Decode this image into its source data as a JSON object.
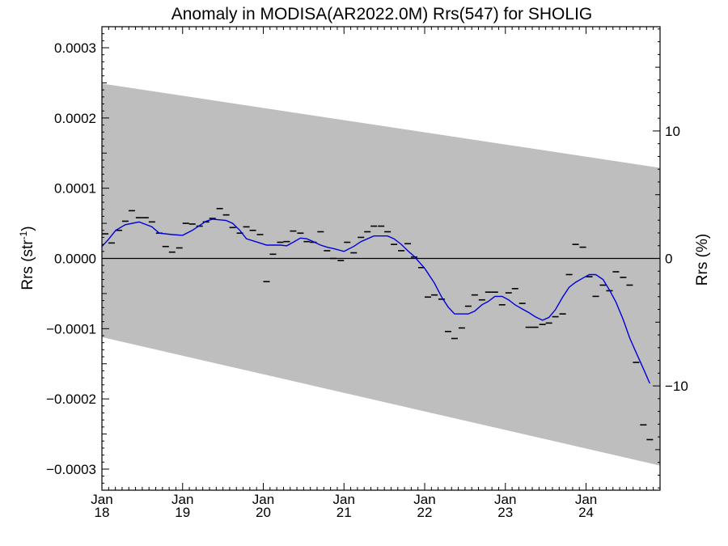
{
  "chart_data": {
    "type": "line",
    "title": "Anomaly in MODISA(AR2022.0M) Rrs(547) for SHOLIG",
    "ylabel_left": "Rrs (str",
    "ylabel_left_sup": "-1",
    "ylabel_left_end": ")",
    "ylabel_right": "Rrs (%)",
    "ylim": [
      -0.00033,
      0.00033
    ],
    "ylim_right": [
      -18.18,
      18.18
    ],
    "xlim": [
      "2018-01",
      "2024-11"
    ],
    "y_ticks": [
      {
        "v": 0.0003,
        "label": "0.0003"
      },
      {
        "v": 0.0002,
        "label": "0.0002"
      },
      {
        "v": 0.0001,
        "label": "0.0001"
      },
      {
        "v": 0,
        "label": "0.0000"
      },
      {
        "v": -0.0001,
        "label": "−0.0001"
      },
      {
        "v": -0.0002,
        "label": "−0.0002"
      },
      {
        "v": -0.0003,
        "label": "−0.0003"
      }
    ],
    "y_right_ticks": [
      {
        "v": 10,
        "label": "10"
      },
      {
        "v": 0,
        "label": "0"
      },
      {
        "v": -10,
        "label": "−10"
      }
    ],
    "x_ticks": [
      {
        "t": 2018.0,
        "month": "Jan",
        "year": "18"
      },
      {
        "t": 2019.0,
        "month": "Jan",
        "year": "19"
      },
      {
        "t": 2020.0,
        "month": "Jan",
        "year": "20"
      },
      {
        "t": 2021.0,
        "month": "Jan",
        "year": "21"
      },
      {
        "t": 2022.0,
        "month": "Jan",
        "year": "22"
      },
      {
        "t": 2023.0,
        "month": "Jan",
        "year": "23"
      },
      {
        "t": 2024.0,
        "month": "Jan",
        "year": "24"
      }
    ],
    "zero_line": 0,
    "band": {
      "start": {
        "t": 2018.0,
        "upper": 0.000249,
        "lower": -0.000112
      },
      "end": {
        "t": 2024.917,
        "upper": 0.000129,
        "lower": -0.000295
      },
      "color": "#bebebe"
    },
    "monthly_points": {
      "color": "#000000",
      "points": [
        [
          2018.04,
          3.5e-05
        ],
        [
          2018.12,
          2.2e-05
        ],
        [
          2018.21,
          4e-05
        ],
        [
          2018.29,
          5.3e-05
        ],
        [
          2018.37,
          6.8e-05
        ],
        [
          2018.46,
          5.8e-05
        ],
        [
          2018.54,
          5.8e-05
        ],
        [
          2018.62,
          5.2e-05
        ],
        [
          2018.71,
          3.6e-05
        ],
        [
          2018.79,
          1.7e-05
        ],
        [
          2018.87,
          9e-06
        ],
        [
          2018.96,
          1.5e-05
        ],
        [
          2019.04,
          5e-05
        ],
        [
          2019.12,
          4.9e-05
        ],
        [
          2019.21,
          4.6e-05
        ],
        [
          2019.29,
          5.2e-05
        ],
        [
          2019.37,
          5.7e-05
        ],
        [
          2019.46,
          7.1e-05
        ],
        [
          2019.54,
          6.2e-05
        ],
        [
          2019.62,
          4.4e-05
        ],
        [
          2019.71,
          3.6e-05
        ],
        [
          2019.79,
          4.5e-05
        ],
        [
          2019.87,
          4e-05
        ],
        [
          2019.96,
          3.4e-05
        ],
        [
          2020.04,
          -3.3e-05
        ],
        [
          2020.12,
          6e-06
        ],
        [
          2020.21,
          2.3e-05
        ],
        [
          2020.29,
          2.4e-05
        ],
        [
          2020.37,
          3.9e-05
        ],
        [
          2020.46,
          3.6e-05
        ],
        [
          2020.54,
          2.4e-05
        ],
        [
          2020.62,
          2.3e-05
        ],
        [
          2020.71,
          3.8e-05
        ],
        [
          2020.79,
          1.1e-05
        ],
        [
          2020.87,
          0.0
        ],
        [
          2020.96,
          -3e-06
        ],
        [
          2021.04,
          2.3e-05
        ],
        [
          2021.12,
          8e-06
        ],
        [
          2021.21,
          3e-05
        ],
        [
          2021.29,
          3.8e-05
        ],
        [
          2021.37,
          4.6e-05
        ],
        [
          2021.46,
          4.6e-05
        ],
        [
          2021.54,
          3.8e-05
        ],
        [
          2021.62,
          2e-05
        ],
        [
          2021.71,
          1.1e-05
        ],
        [
          2021.79,
          2.1e-05
        ],
        [
          2021.87,
          2e-06
        ],
        [
          2021.96,
          -1.3e-05
        ],
        [
          2022.04,
          -5.5e-05
        ],
        [
          2022.12,
          -5.2e-05
        ],
        [
          2022.21,
          -5.8e-05
        ],
        [
          2022.29,
          -0.000104
        ],
        [
          2022.37,
          -0.000114
        ],
        [
          2022.46,
          -9.9e-05
        ],
        [
          2022.54,
          -6.8e-05
        ],
        [
          2022.62,
          -5.2e-05
        ],
        [
          2022.71,
          -5.9e-05
        ],
        [
          2022.79,
          -4.8e-05
        ],
        [
          2022.87,
          -4.8e-05
        ],
        [
          2022.96,
          -6.6e-05
        ],
        [
          2023.04,
          -4.9e-05
        ],
        [
          2023.12,
          -4.3e-05
        ],
        [
          2023.21,
          -6.4e-05
        ],
        [
          2023.29,
          -9.8e-05
        ],
        [
          2023.37,
          -9.8e-05
        ],
        [
          2023.46,
          -9.4e-05
        ],
        [
          2023.54,
          -9.2e-05
        ],
        [
          2023.62,
          -8.3e-05
        ],
        [
          2023.71,
          -7.9e-05
        ],
        [
          2023.79,
          -2.3e-05
        ],
        [
          2023.87,
          2e-05
        ],
        [
          2023.96,
          1.6e-05
        ],
        [
          2024.04,
          -2.6e-05
        ],
        [
          2024.12,
          -5.4e-05
        ],
        [
          2024.21,
          -3.8e-05
        ],
        [
          2024.29,
          -4.6e-05
        ],
        [
          2024.37,
          -1.9e-05
        ],
        [
          2024.46,
          -2.7e-05
        ],
        [
          2024.54,
          -3.8e-05
        ],
        [
          2024.62,
          -0.000148
        ],
        [
          2024.71,
          -0.000237
        ],
        [
          2024.79,
          -0.000258
        ]
      ]
    },
    "smoothed_series": {
      "color": "#0000dd",
      "points": [
        [
          2018.0,
          1.7e-05
        ],
        [
          2018.08,
          2.7e-05
        ],
        [
          2018.17,
          4e-05
        ],
        [
          2018.29,
          4.8e-05
        ],
        [
          2018.46,
          5.2e-05
        ],
        [
          2018.62,
          4.5e-05
        ],
        [
          2018.71,
          3.6e-05
        ],
        [
          2018.87,
          3.4e-05
        ],
        [
          2019.0,
          3.3e-05
        ],
        [
          2019.12,
          4e-05
        ],
        [
          2019.29,
          5.3e-05
        ],
        [
          2019.37,
          5.6e-05
        ],
        [
          2019.54,
          5.4e-05
        ],
        [
          2019.62,
          5e-05
        ],
        [
          2019.71,
          4e-05
        ],
        [
          2019.79,
          2.8e-05
        ],
        [
          2019.96,
          2.2e-05
        ],
        [
          2020.04,
          1.9e-05
        ],
        [
          2020.21,
          1.9e-05
        ],
        [
          2020.29,
          1.8e-05
        ],
        [
          2020.37,
          2.3e-05
        ],
        [
          2020.46,
          2.9e-05
        ],
        [
          2020.54,
          2.8e-05
        ],
        [
          2020.62,
          2.4e-05
        ],
        [
          2020.71,
          1.9e-05
        ],
        [
          2020.79,
          1.6e-05
        ],
        [
          2020.87,
          1.4e-05
        ],
        [
          2021.0,
          1e-05
        ],
        [
          2021.12,
          1.7e-05
        ],
        [
          2021.21,
          2.4e-05
        ],
        [
          2021.37,
          3.2e-05
        ],
        [
          2021.54,
          3.2e-05
        ],
        [
          2021.62,
          2.8e-05
        ],
        [
          2021.71,
          2e-05
        ],
        [
          2021.79,
          1.1e-05
        ],
        [
          2021.87,
          3e-06
        ],
        [
          2022.0,
          -1.4e-05
        ],
        [
          2022.12,
          -3.5e-05
        ],
        [
          2022.21,
          -5.5e-05
        ],
        [
          2022.29,
          -6.9e-05
        ],
        [
          2022.37,
          -7.9e-05
        ],
        [
          2022.46,
          -7.9e-05
        ],
        [
          2022.54,
          -7.9e-05
        ],
        [
          2022.62,
          -7.5e-05
        ],
        [
          2022.71,
          -6.6e-05
        ],
        [
          2022.79,
          -6.1e-05
        ],
        [
          2022.87,
          -5.4e-05
        ],
        [
          2022.96,
          -5.4e-05
        ],
        [
          2023.04,
          -5.9e-05
        ],
        [
          2023.12,
          -6.6e-05
        ],
        [
          2023.21,
          -7.2e-05
        ],
        [
          2023.29,
          -7.7e-05
        ],
        [
          2023.37,
          -8.3e-05
        ],
        [
          2023.46,
          -8.8e-05
        ],
        [
          2023.54,
          -8.4e-05
        ],
        [
          2023.62,
          -7.3e-05
        ],
        [
          2023.71,
          -5.5e-05
        ],
        [
          2023.79,
          -4.1e-05
        ],
        [
          2023.87,
          -3.4e-05
        ],
        [
          2023.96,
          -2.8e-05
        ],
        [
          2024.04,
          -2.3e-05
        ],
        [
          2024.12,
          -2.3e-05
        ],
        [
          2024.21,
          -3e-05
        ],
        [
          2024.29,
          -4.5e-05
        ],
        [
          2024.37,
          -6.2e-05
        ],
        [
          2024.46,
          -8.7e-05
        ],
        [
          2024.54,
          -0.000113
        ],
        [
          2024.62,
          -0.000134
        ],
        [
          2024.71,
          -0.000157
        ],
        [
          2024.79,
          -0.000178
        ]
      ]
    },
    "grid": false,
    "legend": "none"
  }
}
